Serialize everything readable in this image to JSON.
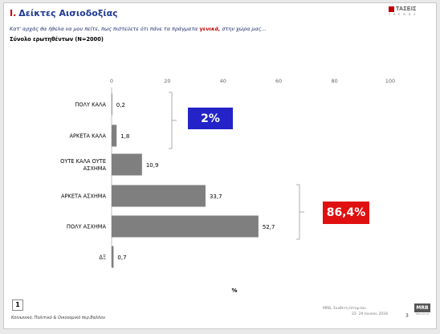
{
  "header": {
    "section_num": "Ι.",
    "title": "Δείκτες Αισιοδοξίας",
    "question_prefix": "Κατ' αρχάς θα ήθελα να μου πείτε, πως πιστεύετε ότι πάνε τα πράγματα ",
    "question_highlight": "γενικά,",
    "question_suffix": " στην χώρα μας...",
    "base": "Σύνολο ερωτηθέντων (Ν=2000)"
  },
  "logo": {
    "name": "ΤΑΣΕΙΣ",
    "sub": "T R E N D S"
  },
  "badges": {
    "positive": "2%",
    "negative": "86,4%"
  },
  "chart_data": {
    "type": "bar",
    "orientation": "horizontal",
    "categories": [
      "ΠΟΛΥ ΚΑΛΑ",
      "ΑΡΚΕΤΑ ΚΑΛΑ",
      "ΟΥΤΕ ΚΑΛΑ ΟΥΤΕ ΑΣΧΗΜΑ",
      "ΑΡΚΕΤΑ ΑΣΧΗΜΑ",
      "ΠΟΛΥ ΑΣΧΗΜΑ",
      "ΔΞ"
    ],
    "values": [
      0.2,
      1.8,
      10.9,
      33.7,
      52.7,
      0.7
    ],
    "value_labels": [
      "0,2",
      "1,8",
      "10,9",
      "33,7",
      "52,7",
      "0,7"
    ],
    "xlim": [
      0,
      100
    ],
    "xticks": [
      0,
      20,
      40,
      60,
      80,
      100
    ],
    "xlabel": "%",
    "grid": false,
    "bar_color": "#7f7f7f"
  },
  "footer": {
    "slide_num": "1",
    "left_text": "Κοινωνικό, Πολιτικό & Οικονομικό περ.Βαλλον",
    "right_line1": "MRB, Συνθετη Ιστορ.Ιου",
    "right_line2": "22- 29 Ιουνίου 2018",
    "page_num": "3",
    "mrb_logo": "MRB",
    "mrb_sub": "HELLAS SA"
  }
}
